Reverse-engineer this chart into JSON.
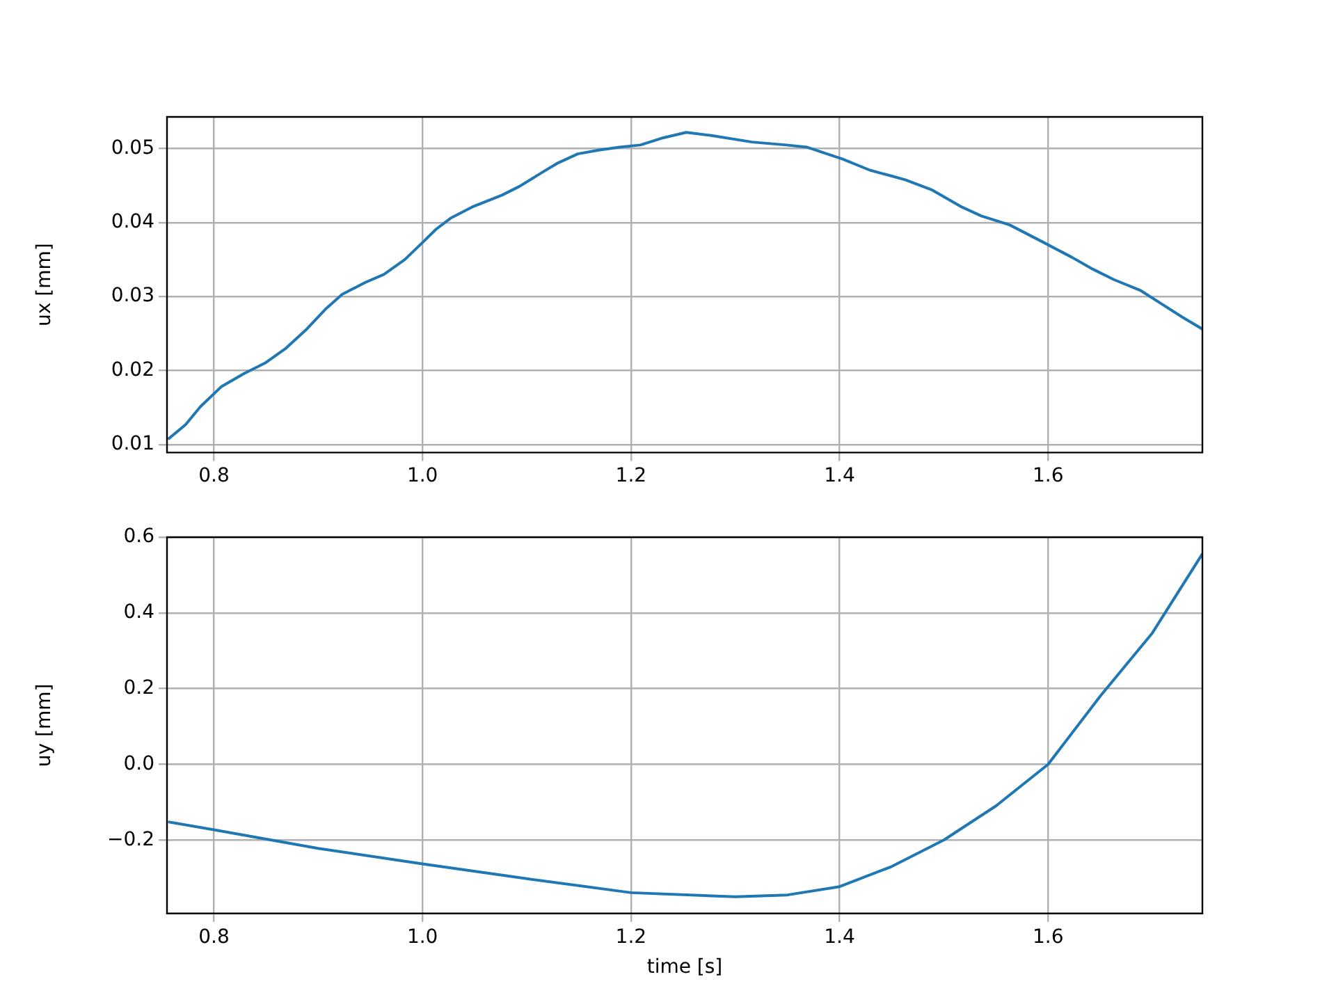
{
  "chart_data": [
    {
      "type": "line",
      "ylabel": "ux [mm]",
      "xlim": [
        0.755,
        1.748
      ],
      "ylim": [
        0.0089,
        0.0543
      ],
      "xticks": [
        {
          "value": 0.8,
          "label": "0.8"
        },
        {
          "value": 1.0,
          "label": "1.0"
        },
        {
          "value": 1.2,
          "label": "1.2"
        },
        {
          "value": 1.4,
          "label": "1.4"
        },
        {
          "value": 1.6,
          "label": "1.6"
        }
      ],
      "yticks": [
        {
          "value": 0.01,
          "label": "0.01"
        },
        {
          "value": 0.02,
          "label": "0.02"
        },
        {
          "value": 0.03,
          "label": "0.03"
        },
        {
          "value": 0.04,
          "label": "0.04"
        },
        {
          "value": 0.05,
          "label": "0.05"
        }
      ],
      "grid": true,
      "legend": false,
      "x": [
        0.756,
        0.773,
        0.787,
        0.807,
        0.829,
        0.849,
        0.869,
        0.889,
        0.907,
        0.923,
        0.945,
        0.963,
        0.983,
        1.0,
        1.013,
        1.027,
        1.049,
        1.076,
        1.093,
        1.116,
        1.129,
        1.149,
        1.169,
        1.189,
        1.209,
        1.229,
        1.253,
        1.276,
        1.316,
        1.349,
        1.369,
        1.403,
        1.429,
        1.463,
        1.489,
        1.516,
        1.536,
        1.563,
        1.596,
        1.623,
        1.643,
        1.663,
        1.689,
        1.709,
        1.729,
        1.748
      ],
      "series": [
        {
          "color": "#1f77b4",
          "values": [
            0.0107,
            0.0127,
            0.0151,
            0.0178,
            0.0196,
            0.021,
            0.023,
            0.0256,
            0.0283,
            0.0303,
            0.0319,
            0.033,
            0.035,
            0.0373,
            0.0391,
            0.0406,
            0.0422,
            0.0437,
            0.0449,
            0.0469,
            0.048,
            0.0493,
            0.0498,
            0.0502,
            0.0505,
            0.0514,
            0.0522,
            0.0518,
            0.0509,
            0.0505,
            0.0502,
            0.0486,
            0.0471,
            0.0458,
            0.0444,
            0.0422,
            0.0409,
            0.0397,
            0.0373,
            0.0353,
            0.0337,
            0.0323,
            0.0308,
            0.029,
            0.0272,
            0.0256
          ]
        }
      ]
    },
    {
      "type": "line",
      "xlabel": "time [s]",
      "ylabel": "uy [mm]",
      "xlim": [
        0.755,
        1.748
      ],
      "ylim": [
        -0.394,
        0.6
      ],
      "xticks": [
        {
          "value": 0.8,
          "label": "0.8"
        },
        {
          "value": 1.0,
          "label": "1.0"
        },
        {
          "value": 1.2,
          "label": "1.2"
        },
        {
          "value": 1.4,
          "label": "1.4"
        },
        {
          "value": 1.6,
          "label": "1.6"
        }
      ],
      "yticks": [
        {
          "value": -0.2,
          "label": "−0.2"
        },
        {
          "value": 0,
          "label": "0.0"
        },
        {
          "value": 0.2,
          "label": "0.2"
        },
        {
          "value": 0.4,
          "label": "0.4"
        },
        {
          "value": 0.6,
          "label": "0.6"
        }
      ],
      "grid": true,
      "legend": false,
      "x": [
        0.756,
        0.8,
        0.9,
        1.0,
        1.1,
        1.2,
        1.3,
        1.35,
        1.4,
        1.45,
        1.5,
        1.55,
        1.6,
        1.65,
        1.7,
        1.748
      ],
      "series": [
        {
          "color": "#1f77b4",
          "values": [
            -0.152,
            -0.173,
            -0.222,
            -0.263,
            -0.302,
            -0.339,
            -0.35,
            -0.345,
            -0.323,
            -0.27,
            -0.2,
            -0.11,
            0.0,
            0.18,
            0.347,
            0.556
          ]
        }
      ]
    }
  ]
}
